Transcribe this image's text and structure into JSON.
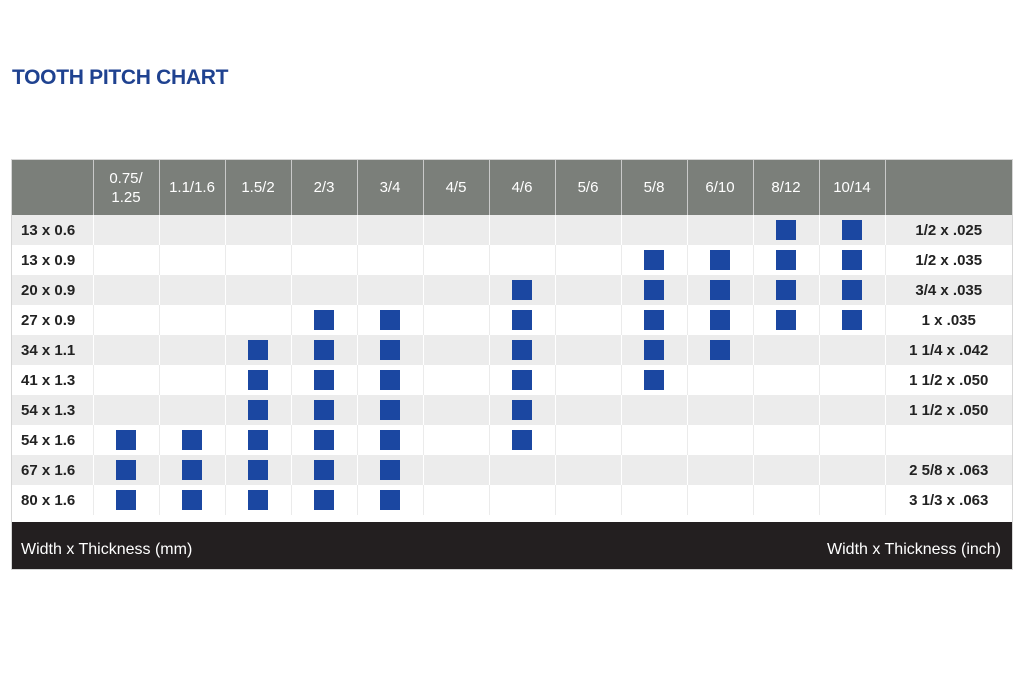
{
  "title": "TOOTH PITCH CHART",
  "table": {
    "header": [
      "",
      "0.75/\n1.25",
      "1.1/1.6",
      "1.5/2",
      "2/3",
      "3/4",
      "4/5",
      "4/6",
      "5/6",
      "5/8",
      "6/10",
      "8/12",
      "10/14",
      ""
    ],
    "rows": [
      {
        "mm": "13 x 0.6",
        "inch": "1/2 x .025",
        "marks": [
          0,
          0,
          0,
          0,
          0,
          0,
          0,
          0,
          0,
          0,
          1,
          1
        ]
      },
      {
        "mm": "13 x 0.9",
        "inch": "1/2 x .035",
        "marks": [
          0,
          0,
          0,
          0,
          0,
          0,
          0,
          0,
          1,
          1,
          1,
          1
        ]
      },
      {
        "mm": "20 x 0.9",
        "inch": "3/4 x .035",
        "marks": [
          0,
          0,
          0,
          0,
          0,
          0,
          1,
          0,
          1,
          1,
          1,
          1
        ]
      },
      {
        "mm": "27 x 0.9",
        "inch": "1 x .035",
        "marks": [
          0,
          0,
          0,
          1,
          1,
          0,
          1,
          0,
          1,
          1,
          1,
          1
        ]
      },
      {
        "mm": "34 x 1.1",
        "inch": "1 1/4 x .042",
        "marks": [
          0,
          0,
          1,
          1,
          1,
          0,
          1,
          0,
          1,
          1,
          0,
          0
        ]
      },
      {
        "mm": "41 x 1.3",
        "inch": "1 1/2 x .050",
        "marks": [
          0,
          0,
          1,
          1,
          1,
          0,
          1,
          0,
          1,
          0,
          0,
          0
        ]
      },
      {
        "mm": "54 x 1.3",
        "inch": "1 1/2 x .050",
        "marks": [
          0,
          0,
          1,
          1,
          1,
          0,
          1,
          0,
          0,
          0,
          0,
          0
        ]
      },
      {
        "mm": "54 x 1.6",
        "inch": "",
        "marks": [
          1,
          1,
          1,
          1,
          1,
          0,
          1,
          0,
          0,
          0,
          0,
          0
        ]
      },
      {
        "mm": "67 x 1.6",
        "inch": "2 5/8 x .063",
        "marks": [
          1,
          1,
          1,
          1,
          1,
          0,
          0,
          0,
          0,
          0,
          0,
          0
        ]
      },
      {
        "mm": "80 x 1.6",
        "inch": "3 1/3 x .063",
        "marks": [
          1,
          1,
          1,
          1,
          1,
          0,
          0,
          0,
          0,
          0,
          0,
          0
        ]
      }
    ]
  },
  "footer": {
    "left": "Width x Thickness (mm)",
    "right": "Width x Thickness (inch)"
  },
  "colors": {
    "title": "#1f4290",
    "header_bg": "#7b7f7a",
    "mark": "#1b47a1",
    "footer_bg": "#231f20"
  }
}
